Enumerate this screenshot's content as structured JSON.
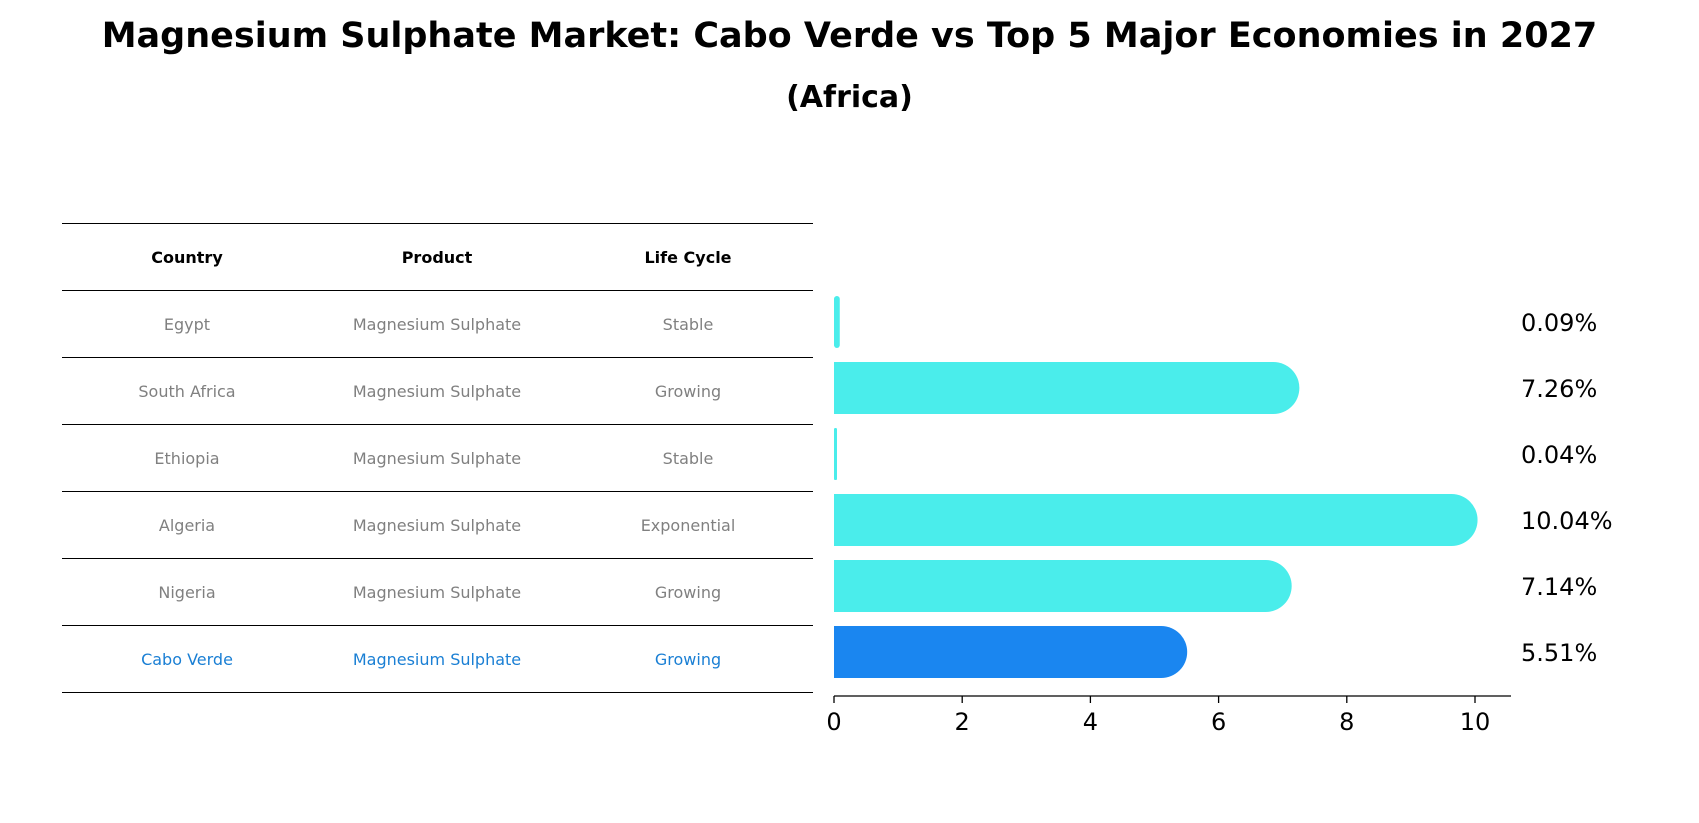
{
  "title": "Magnesium Sulphate Market: Cabo Verde vs Top 5 Major Economies in 2027",
  "subtitle": "(Africa)",
  "table": {
    "headers": [
      "Country",
      "Product",
      "Life Cycle"
    ],
    "rows": [
      {
        "country": "Egypt",
        "product": "Magnesium Sulphate",
        "life_cycle": "Stable"
      },
      {
        "country": "South Africa",
        "product": "Magnesium Sulphate",
        "life_cycle": "Growing"
      },
      {
        "country": "Ethiopia",
        "product": "Magnesium Sulphate",
        "life_cycle": "Stable"
      },
      {
        "country": "Algeria",
        "product": "Magnesium Sulphate",
        "life_cycle": "Exponential"
      },
      {
        "country": "Nigeria",
        "product": "Magnesium Sulphate",
        "life_cycle": "Growing"
      },
      {
        "country": "Cabo Verde",
        "product": "Magnesium Sulphate",
        "life_cycle": "Growing"
      }
    ]
  },
  "chart_data": {
    "type": "bar",
    "orientation": "horizontal",
    "categories": [
      "Egypt",
      "South Africa",
      "Ethiopia",
      "Algeria",
      "Nigeria",
      "Cabo Verde"
    ],
    "values": [
      0.09,
      7.26,
      0.04,
      10.04,
      7.14,
      5.51
    ],
    "value_labels": [
      "0.09%",
      "7.26%",
      "0.04%",
      "10.04%",
      "7.14%",
      "5.51%"
    ],
    "highlight": "Cabo Verde",
    "xlim": [
      0,
      10.6
    ],
    "xticks": [
      0,
      2,
      4,
      6,
      8,
      10
    ],
    "colors": {
      "default": "#4AEDEB",
      "highlight": "#1A86F0"
    }
  }
}
